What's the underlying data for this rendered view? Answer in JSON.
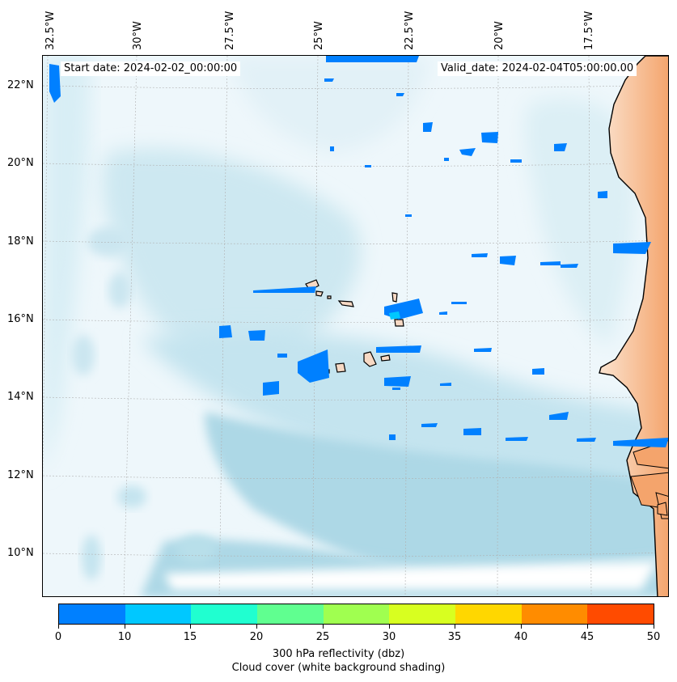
{
  "map": {
    "start_date": "Start date: 2024-02-02_00:00:00",
    "valid_date": "Valid_date: 2024-02-04T05:00:00.00",
    "lon_labels": [
      "32.5°W",
      "30°W",
      "27.5°W",
      "25°W",
      "22.5°W",
      "20°W",
      "17.5°W"
    ],
    "lat_labels": [
      "22°N",
      "20°N",
      "18°N",
      "16°N",
      "14°N",
      "12°N",
      "10°N"
    ],
    "colors": {
      "cloud_cover": "#add8e6",
      "reflectivity_low": "#0080ff",
      "land": "#f4a46c",
      "islands": "#f7d9c4"
    }
  },
  "colorbar": {
    "ticks": [
      "0",
      "10",
      "15",
      "20",
      "25",
      "30",
      "35",
      "40",
      "45",
      "50"
    ],
    "colors": [
      "#0080ff",
      "#00c8ff",
      "#20ffd0",
      "#60ff90",
      "#a0ff50",
      "#d8ff20",
      "#ffd700",
      "#ff8c00",
      "#ff4b00"
    ],
    "label": "300 hPa reflectivity (dbz)",
    "sublabel": "Cloud cover (white background shading)"
  }
}
